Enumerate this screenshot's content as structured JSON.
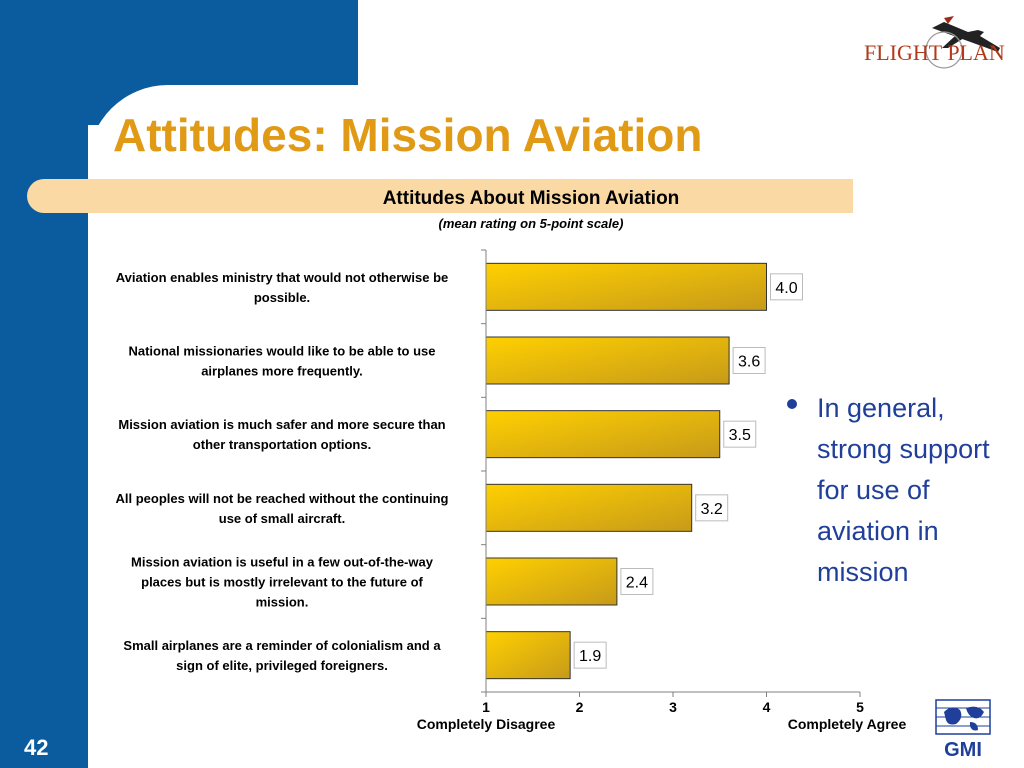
{
  "slide": {
    "title": "Attitudes: Mission Aviation",
    "page_number": "42",
    "bullet_text": "In general, strong support for use of aviation in mission"
  },
  "logos": {
    "top_right": "FLIGHT PLAN",
    "bottom_right": "GMI"
  },
  "colors": {
    "band_blue": "#0b5c9e",
    "title_orange": "#e09a16",
    "bullet_blue": "#1f3f9a",
    "bar_light": "#ffd000",
    "bar_dark": "#c79a1a",
    "header_strip": "#fbd9a4"
  },
  "icons": {
    "bullet": "bullet-dot-icon",
    "top_logo": "flight-plan-airplane-logo",
    "bottom_logo": "gmi-globe-logo"
  },
  "chart_data": {
    "type": "bar",
    "orientation": "horizontal",
    "title": "Attitudes About Mission Aviation",
    "subtitle": "(mean rating on 5-point scale)",
    "categories": [
      [
        "Aviation enables ministry that would not otherwise be",
        "possible."
      ],
      [
        "National missionaries would like to be able to use",
        "airplanes more frequently."
      ],
      [
        "Mission aviation is much safer and more secure than",
        "other transportation options."
      ],
      [
        "All peoples will not be reached without the continuing",
        "use of small aircraft."
      ],
      [
        "Mission aviation is useful in a few out-of-the-way",
        "places but is mostly irrelevant to the future of",
        "mission."
      ],
      [
        "Small airplanes are a reminder of colonialism and a",
        "sign of elite, privileged foreigners."
      ]
    ],
    "values": [
      4.0,
      3.6,
      3.5,
      3.2,
      2.4,
      1.9
    ],
    "value_labels": [
      "4.0",
      "3.6",
      "3.5",
      "3.2",
      "2.4",
      "1.9"
    ],
    "xlim": [
      1,
      5
    ],
    "xticks": [
      "1",
      "2",
      "3",
      "4",
      "5"
    ],
    "axis_end_labels": {
      "left": "Completely Disagree",
      "right": "Completely Agree"
    },
    "grid": false
  }
}
